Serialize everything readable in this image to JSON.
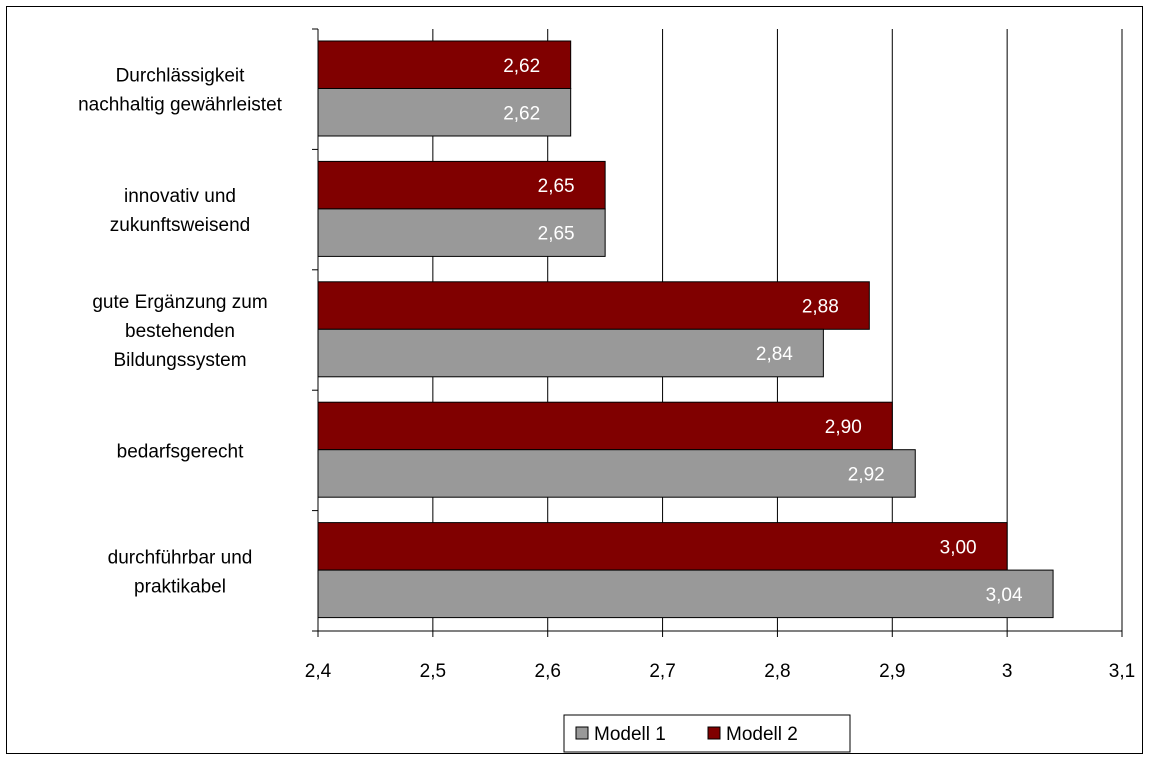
{
  "chart_data": {
    "type": "bar",
    "orientation": "horizontal",
    "categories": [
      [
        "Durchlässigkeit",
        "nachhaltig gewährleistet"
      ],
      [
        "innovativ und",
        "zukunftsweisend"
      ],
      [
        "gute Ergänzung zum",
        "bestehenden",
        "Bildungssystem"
      ],
      [
        "bedarfsgerecht"
      ],
      [
        "durchführbar und",
        "praktikabel"
      ]
    ],
    "series": [
      {
        "name": "Modell 2",
        "color": "#800000",
        "values": [
          2.62,
          2.65,
          2.88,
          2.9,
          3.0
        ],
        "labels": [
          "2,62",
          "2,65",
          "2,88",
          "2,90",
          "3,00"
        ]
      },
      {
        "name": "Modell 1",
        "color": "#999999",
        "values": [
          2.62,
          2.65,
          2.84,
          2.92,
          3.04
        ],
        "labels": [
          "2,62",
          "2,65",
          "2,84",
          "2,92",
          "3,04"
        ]
      }
    ],
    "xlim": [
      2.4,
      3.1
    ],
    "xticks": [
      2.4,
      2.5,
      2.6,
      2.7,
      2.8,
      2.9,
      3.0,
      3.1
    ],
    "xtick_labels": [
      "2,4",
      "2,5",
      "2,6",
      "2,7",
      "2,8",
      "2,9",
      "3",
      "3,1"
    ],
    "grid": "vertical",
    "legend": {
      "position": "bottom",
      "entries": [
        {
          "name": "Modell 1",
          "color": "#999999"
        },
        {
          "name": "Modell 2",
          "color": "#800000"
        }
      ]
    }
  }
}
